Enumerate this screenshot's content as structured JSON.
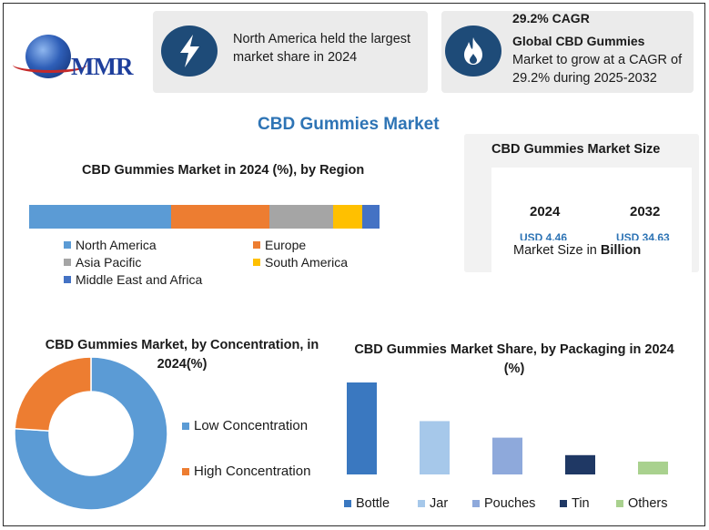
{
  "logo": {
    "text": "MMR"
  },
  "card1": {
    "icon": "lightning-bolt-icon",
    "text": "North America held the largest market share in 2024"
  },
  "card2": {
    "icon": "flame-icon",
    "headline": "29.2% CAGR",
    "subtitle": "Global CBD Gummies",
    "text": "Market to grow at a CAGR of 29.2% during 2025-2032"
  },
  "main_title": "CBD Gummies Market",
  "market_size": {
    "title": "CBD Gummies Market Size",
    "year1": "2024",
    "value1": "USD 4.46",
    "year2": "2032",
    "value2": "USD 34.63",
    "footer_prefix": "Market Size in ",
    "footer_unit": "Billion"
  },
  "chart_data": [
    {
      "type": "bar",
      "orientation": "horizontal-stacked",
      "title": "CBD Gummies Market in 2024 (%), by Region",
      "categories": [
        "North America",
        "Europe",
        "Asia Pacific",
        "South America",
        "Middle East and Africa"
      ],
      "values": [
        40,
        28,
        18,
        8,
        5
      ],
      "colors": [
        "#5b9bd5",
        "#ed7d31",
        "#a5a5a5",
        "#ffc000",
        "#4472c4"
      ],
      "legend": "bottom"
    },
    {
      "type": "pie",
      "subtype": "donut",
      "title": "CBD Gummies Market, by Concentration, in 2024(%)",
      "categories": [
        "Low Concentration",
        "High Concentration"
      ],
      "values": [
        76,
        24
      ],
      "colors": [
        "#5b9bd5",
        "#ed7d31"
      ],
      "legend": "right"
    },
    {
      "type": "bar",
      "title": "CBD Gummies Market Share, by Packaging in 2024 (%)",
      "categories": [
        "Bottle",
        "Jar",
        "Pouches",
        "Tin",
        "Others"
      ],
      "values": [
        100,
        58,
        40,
        21,
        14
      ],
      "colors": [
        "#3a78c0",
        "#a6c8ea",
        "#8ea9db",
        "#1f3864",
        "#a9d18e"
      ],
      "legend": "bottom",
      "grid": false
    }
  ]
}
